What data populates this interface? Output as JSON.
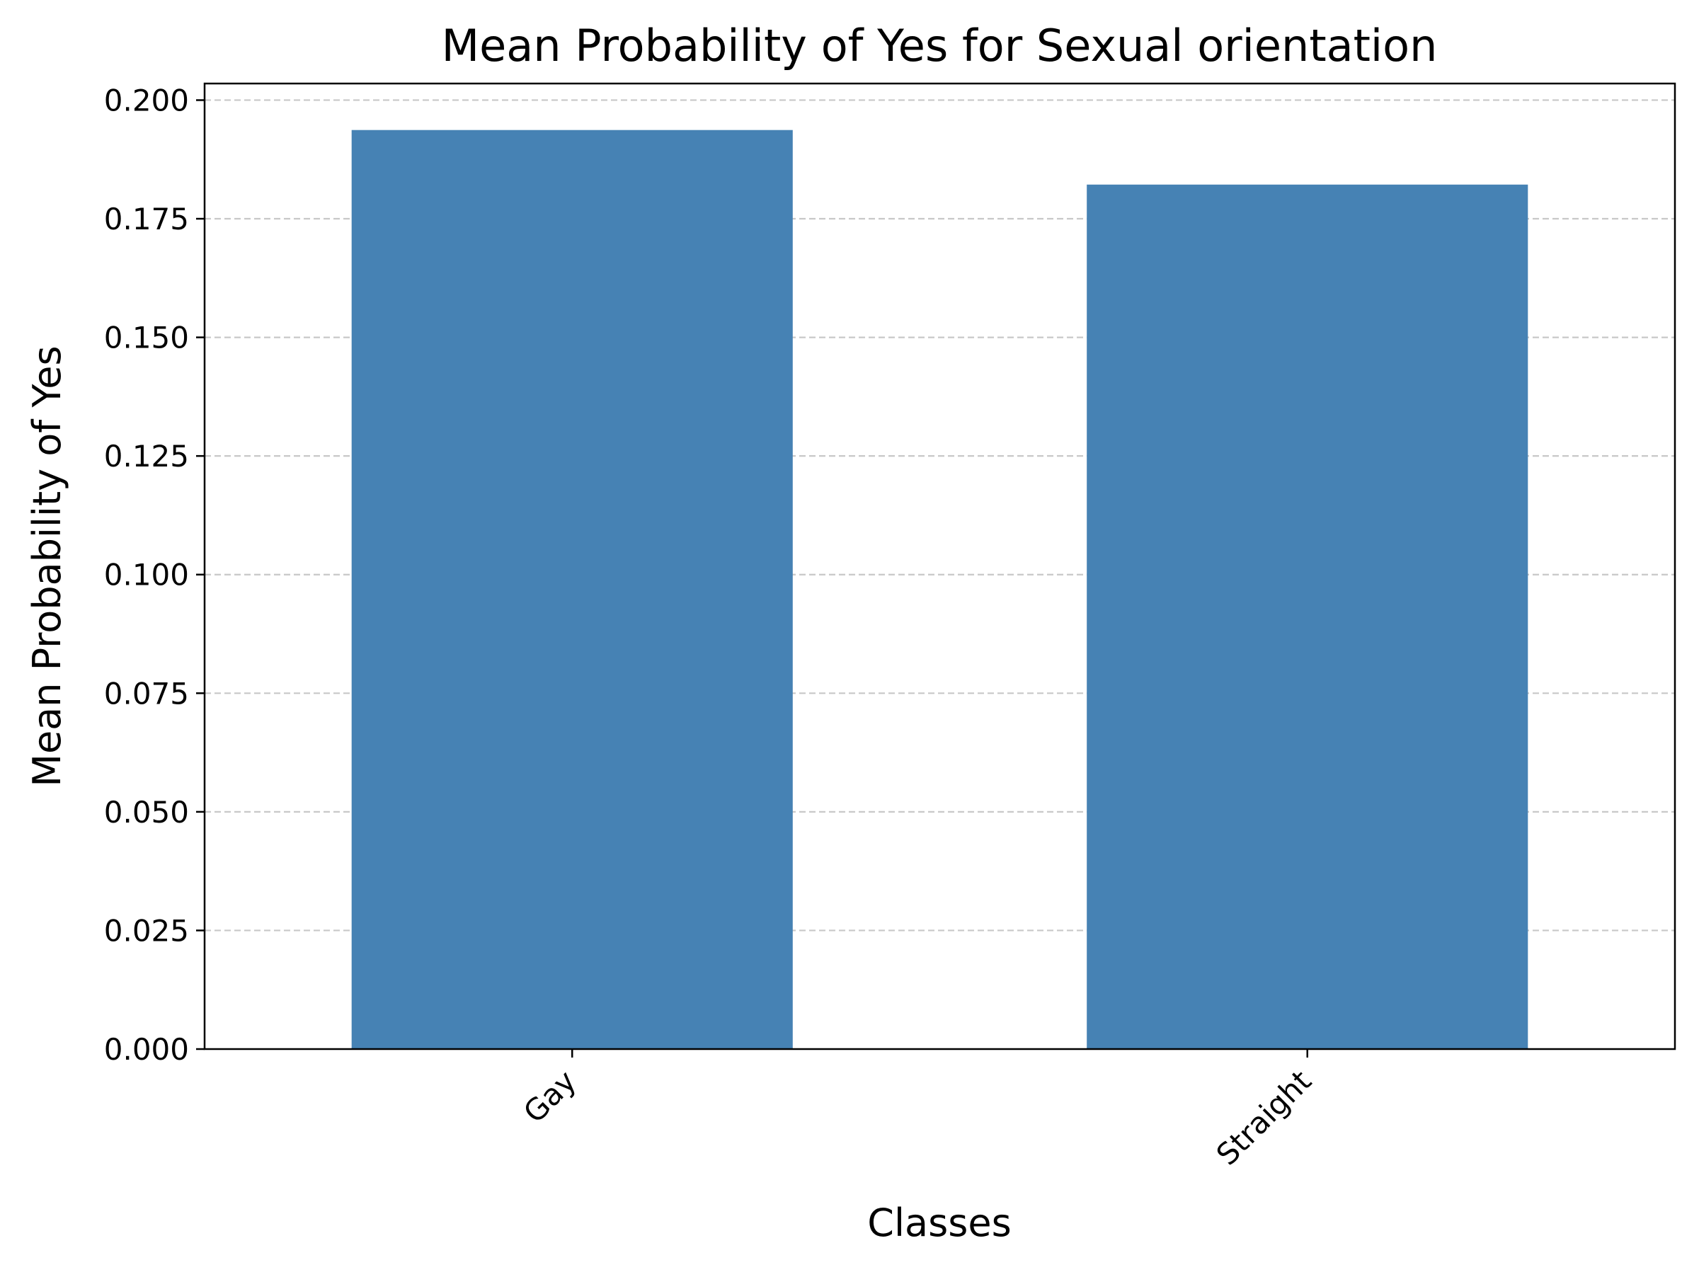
{
  "chart_data": {
    "type": "bar",
    "title": "Mean Probability of Yes for Sexual orientation",
    "xlabel": "Classes",
    "ylabel": "Mean Probability of Yes",
    "categories": [
      "Gay",
      "Straight"
    ],
    "values": [
      0.1937,
      0.1822
    ],
    "ylim": [
      0,
      0.2035
    ],
    "yticks": [
      0.0,
      0.025,
      0.05,
      0.075,
      0.1,
      0.125,
      0.15,
      0.175,
      0.2
    ],
    "ytick_labels": [
      "0.000",
      "0.025",
      "0.050",
      "0.075",
      "0.100",
      "0.125",
      "0.150",
      "0.175",
      "0.200"
    ],
    "grid": "y-dashed",
    "x_tick_rotation": 45,
    "bar_color": "#4682b4",
    "grid_color": "#c8c8c8",
    "axis_color": "#000000"
  }
}
